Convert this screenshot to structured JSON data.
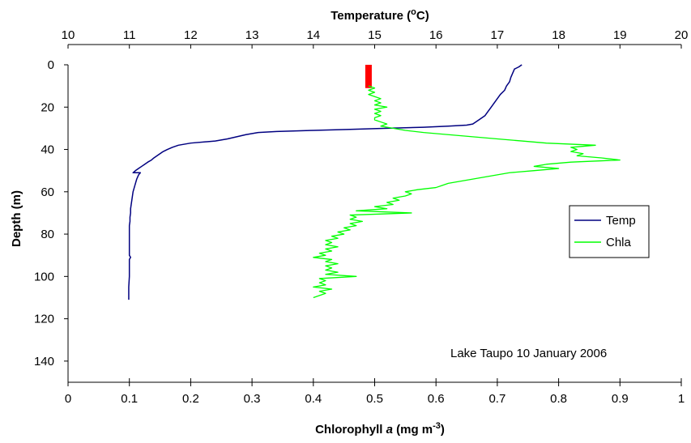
{
  "chart_data": {
    "type": "line",
    "top_axis": {
      "title_text": "Temperature (",
      "title_sup": "o",
      "title_tail": "C)",
      "range": [
        10,
        20
      ],
      "ticks": [
        "10",
        "11",
        "12",
        "13",
        "14",
        "15",
        "16",
        "17",
        "18",
        "19",
        "20"
      ]
    },
    "bottom_axis": {
      "title_pre": "Chlorophyll ",
      "title_italic": "a",
      "title_mid": " (mg m",
      "title_sup": "-3",
      "title_tail": ")",
      "range": [
        0,
        1
      ],
      "ticks": [
        "0",
        "0.1",
        "0.2",
        "0.3",
        "0.4",
        "0.5",
        "0.6",
        "0.7",
        "0.8",
        "0.9",
        "1"
      ]
    },
    "y_axis": {
      "title": "Depth (m)",
      "range": [
        0,
        150
      ],
      "reversed": true,
      "ticks": [
        "0",
        "20",
        "40",
        "60",
        "80",
        "100",
        "120",
        "140"
      ]
    },
    "annotation": "Lake Taupo 10 January 2006",
    "legend_position": "right",
    "grid": false,
    "series": [
      {
        "name": "Temp",
        "axis": "top",
        "color": "#000080",
        "points": [
          [
            17.4,
            0
          ],
          [
            17.35,
            1
          ],
          [
            17.28,
            2
          ],
          [
            17.25,
            4
          ],
          [
            17.22,
            6
          ],
          [
            17.2,
            8
          ],
          [
            17.15,
            10
          ],
          [
            17.12,
            12
          ],
          [
            17.05,
            14
          ],
          [
            17.0,
            16
          ],
          [
            16.95,
            18
          ],
          [
            16.9,
            20
          ],
          [
            16.85,
            22
          ],
          [
            16.8,
            24
          ],
          [
            16.7,
            26
          ],
          [
            16.6,
            28
          ],
          [
            16.5,
            28.5
          ],
          [
            16.2,
            29
          ],
          [
            15.8,
            29.5
          ],
          [
            15.2,
            30
          ],
          [
            14.6,
            30.5
          ],
          [
            14.0,
            31
          ],
          [
            13.4,
            31.5
          ],
          [
            13.1,
            32
          ],
          [
            12.9,
            33
          ],
          [
            12.75,
            34
          ],
          [
            12.6,
            35
          ],
          [
            12.4,
            36
          ],
          [
            12.0,
            37
          ],
          [
            11.8,
            38
          ],
          [
            11.7,
            39
          ],
          [
            11.62,
            40
          ],
          [
            11.55,
            41
          ],
          [
            11.5,
            42
          ],
          [
            11.45,
            43
          ],
          [
            11.4,
            44
          ],
          [
            11.36,
            45
          ],
          [
            11.3,
            46
          ],
          [
            11.25,
            47
          ],
          [
            11.2,
            48
          ],
          [
            11.15,
            49
          ],
          [
            11.1,
            50
          ],
          [
            11.06,
            51
          ],
          [
            11.18,
            51
          ],
          [
            11.15,
            52
          ],
          [
            11.12,
            54
          ],
          [
            11.1,
            56
          ],
          [
            11.08,
            58
          ],
          [
            11.06,
            60
          ],
          [
            11.05,
            62
          ],
          [
            11.04,
            64
          ],
          [
            11.03,
            66
          ],
          [
            11.02,
            68
          ],
          [
            11.02,
            70
          ],
          [
            11.01,
            72
          ],
          [
            11.01,
            74
          ],
          [
            11.0,
            76
          ],
          [
            11.0,
            78
          ],
          [
            11.0,
            80
          ],
          [
            11.0,
            85
          ],
          [
            11.0,
            90
          ],
          [
            11.02,
            91
          ],
          [
            11.0,
            92
          ],
          [
            11.0,
            95
          ],
          [
            11.0,
            100
          ],
          [
            10.99,
            105
          ],
          [
            10.99,
            110
          ],
          [
            10.99,
            111
          ]
        ]
      },
      {
        "name": "Chla",
        "axis": "bottom",
        "color": "#00ff00",
        "points": [
          [
            0.49,
            10
          ],
          [
            0.5,
            11
          ],
          [
            0.49,
            12
          ],
          [
            0.5,
            13
          ],
          [
            0.49,
            14
          ],
          [
            0.5,
            15
          ],
          [
            0.51,
            16
          ],
          [
            0.5,
            17
          ],
          [
            0.51,
            18
          ],
          [
            0.5,
            19
          ],
          [
            0.52,
            20
          ],
          [
            0.5,
            21
          ],
          [
            0.51,
            22
          ],
          [
            0.5,
            23
          ],
          [
            0.51,
            24
          ],
          [
            0.5,
            25
          ],
          [
            0.5,
            26
          ],
          [
            0.51,
            27
          ],
          [
            0.52,
            28
          ],
          [
            0.51,
            29
          ],
          [
            0.53,
            30
          ],
          [
            0.55,
            31
          ],
          [
            0.58,
            32
          ],
          [
            0.62,
            33
          ],
          [
            0.66,
            34
          ],
          [
            0.7,
            35
          ],
          [
            0.74,
            36
          ],
          [
            0.78,
            37
          ],
          [
            0.86,
            38
          ],
          [
            0.82,
            39
          ],
          [
            0.83,
            40
          ],
          [
            0.82,
            41
          ],
          [
            0.84,
            42
          ],
          [
            0.83,
            43
          ],
          [
            0.87,
            44
          ],
          [
            0.9,
            45
          ],
          [
            0.82,
            46
          ],
          [
            0.78,
            47
          ],
          [
            0.76,
            48
          ],
          [
            0.8,
            49
          ],
          [
            0.76,
            50
          ],
          [
            0.72,
            51
          ],
          [
            0.7,
            52
          ],
          [
            0.68,
            53
          ],
          [
            0.66,
            54
          ],
          [
            0.64,
            55
          ],
          [
            0.62,
            56
          ],
          [
            0.61,
            57
          ],
          [
            0.6,
            58
          ],
          [
            0.57,
            59
          ],
          [
            0.55,
            60
          ],
          [
            0.56,
            61
          ],
          [
            0.55,
            62
          ],
          [
            0.53,
            63
          ],
          [
            0.54,
            64
          ],
          [
            0.52,
            65
          ],
          [
            0.53,
            66
          ],
          [
            0.5,
            67
          ],
          [
            0.52,
            68
          ],
          [
            0.47,
            69
          ],
          [
            0.56,
            70
          ],
          [
            0.46,
            71
          ],
          [
            0.47,
            72
          ],
          [
            0.46,
            73
          ],
          [
            0.48,
            74
          ],
          [
            0.46,
            75
          ],
          [
            0.47,
            76
          ],
          [
            0.45,
            77
          ],
          [
            0.46,
            78
          ],
          [
            0.44,
            79
          ],
          [
            0.45,
            80
          ],
          [
            0.43,
            81
          ],
          [
            0.44,
            82
          ],
          [
            0.42,
            83
          ],
          [
            0.43,
            84
          ],
          [
            0.42,
            85
          ],
          [
            0.44,
            86
          ],
          [
            0.42,
            87
          ],
          [
            0.43,
            88
          ],
          [
            0.41,
            89
          ],
          [
            0.42,
            90
          ],
          [
            0.4,
            91
          ],
          [
            0.43,
            92
          ],
          [
            0.42,
            93
          ],
          [
            0.44,
            94
          ],
          [
            0.42,
            95
          ],
          [
            0.43,
            96
          ],
          [
            0.42,
            97
          ],
          [
            0.44,
            98
          ],
          [
            0.42,
            99
          ],
          [
            0.47,
            100
          ],
          [
            0.41,
            101
          ],
          [
            0.42,
            102
          ],
          [
            0.41,
            103
          ],
          [
            0.42,
            104
          ],
          [
            0.4,
            105
          ],
          [
            0.43,
            106
          ],
          [
            0.41,
            107
          ],
          [
            0.42,
            108
          ],
          [
            0.41,
            109
          ],
          [
            0.4,
            110
          ]
        ]
      }
    ],
    "marker": {
      "color": "#ff0000",
      "x": 0.49,
      "depth_from": 0,
      "depth_to": 11
    }
  }
}
